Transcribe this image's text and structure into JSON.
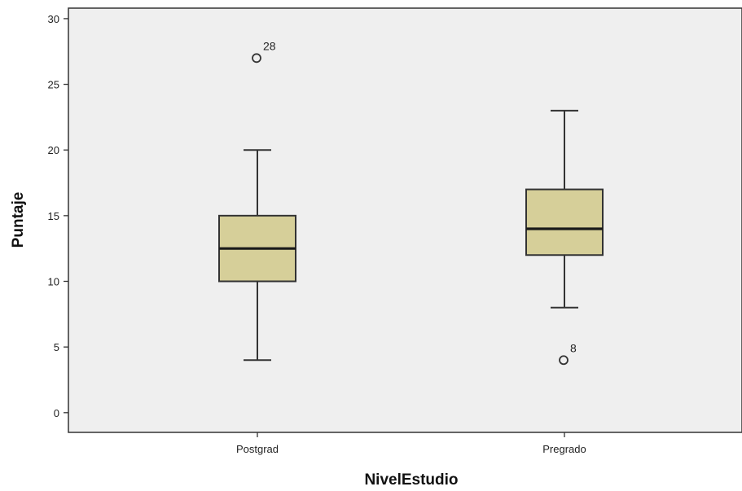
{
  "chart_data": {
    "type": "boxplot",
    "title": "",
    "xlabel": "NivelEstudio",
    "ylabel": "Puntaje",
    "ylim": [
      -1.5,
      30.8
    ],
    "yticks": [
      0,
      5,
      10,
      15,
      20,
      25,
      30
    ],
    "grid": false,
    "legend": "none",
    "colors": {
      "background": "#efefef",
      "box_fill": "#d6cf99",
      "stroke": "#333333"
    },
    "categories": [
      "Postgrad",
      "Pregrado"
    ],
    "boxes": [
      {
        "category": "Postgrad",
        "whisker_low": 4,
        "q1": 10,
        "median": 12.5,
        "q3": 15,
        "whisker_high": 20,
        "outliers": [
          {
            "value": 27,
            "label": "28"
          }
        ]
      },
      {
        "category": "Pregrado",
        "whisker_low": 8,
        "q1": 12,
        "median": 14,
        "q3": 17,
        "whisker_high": 23,
        "outliers": [
          {
            "value": 4,
            "label": "8"
          }
        ]
      }
    ]
  }
}
